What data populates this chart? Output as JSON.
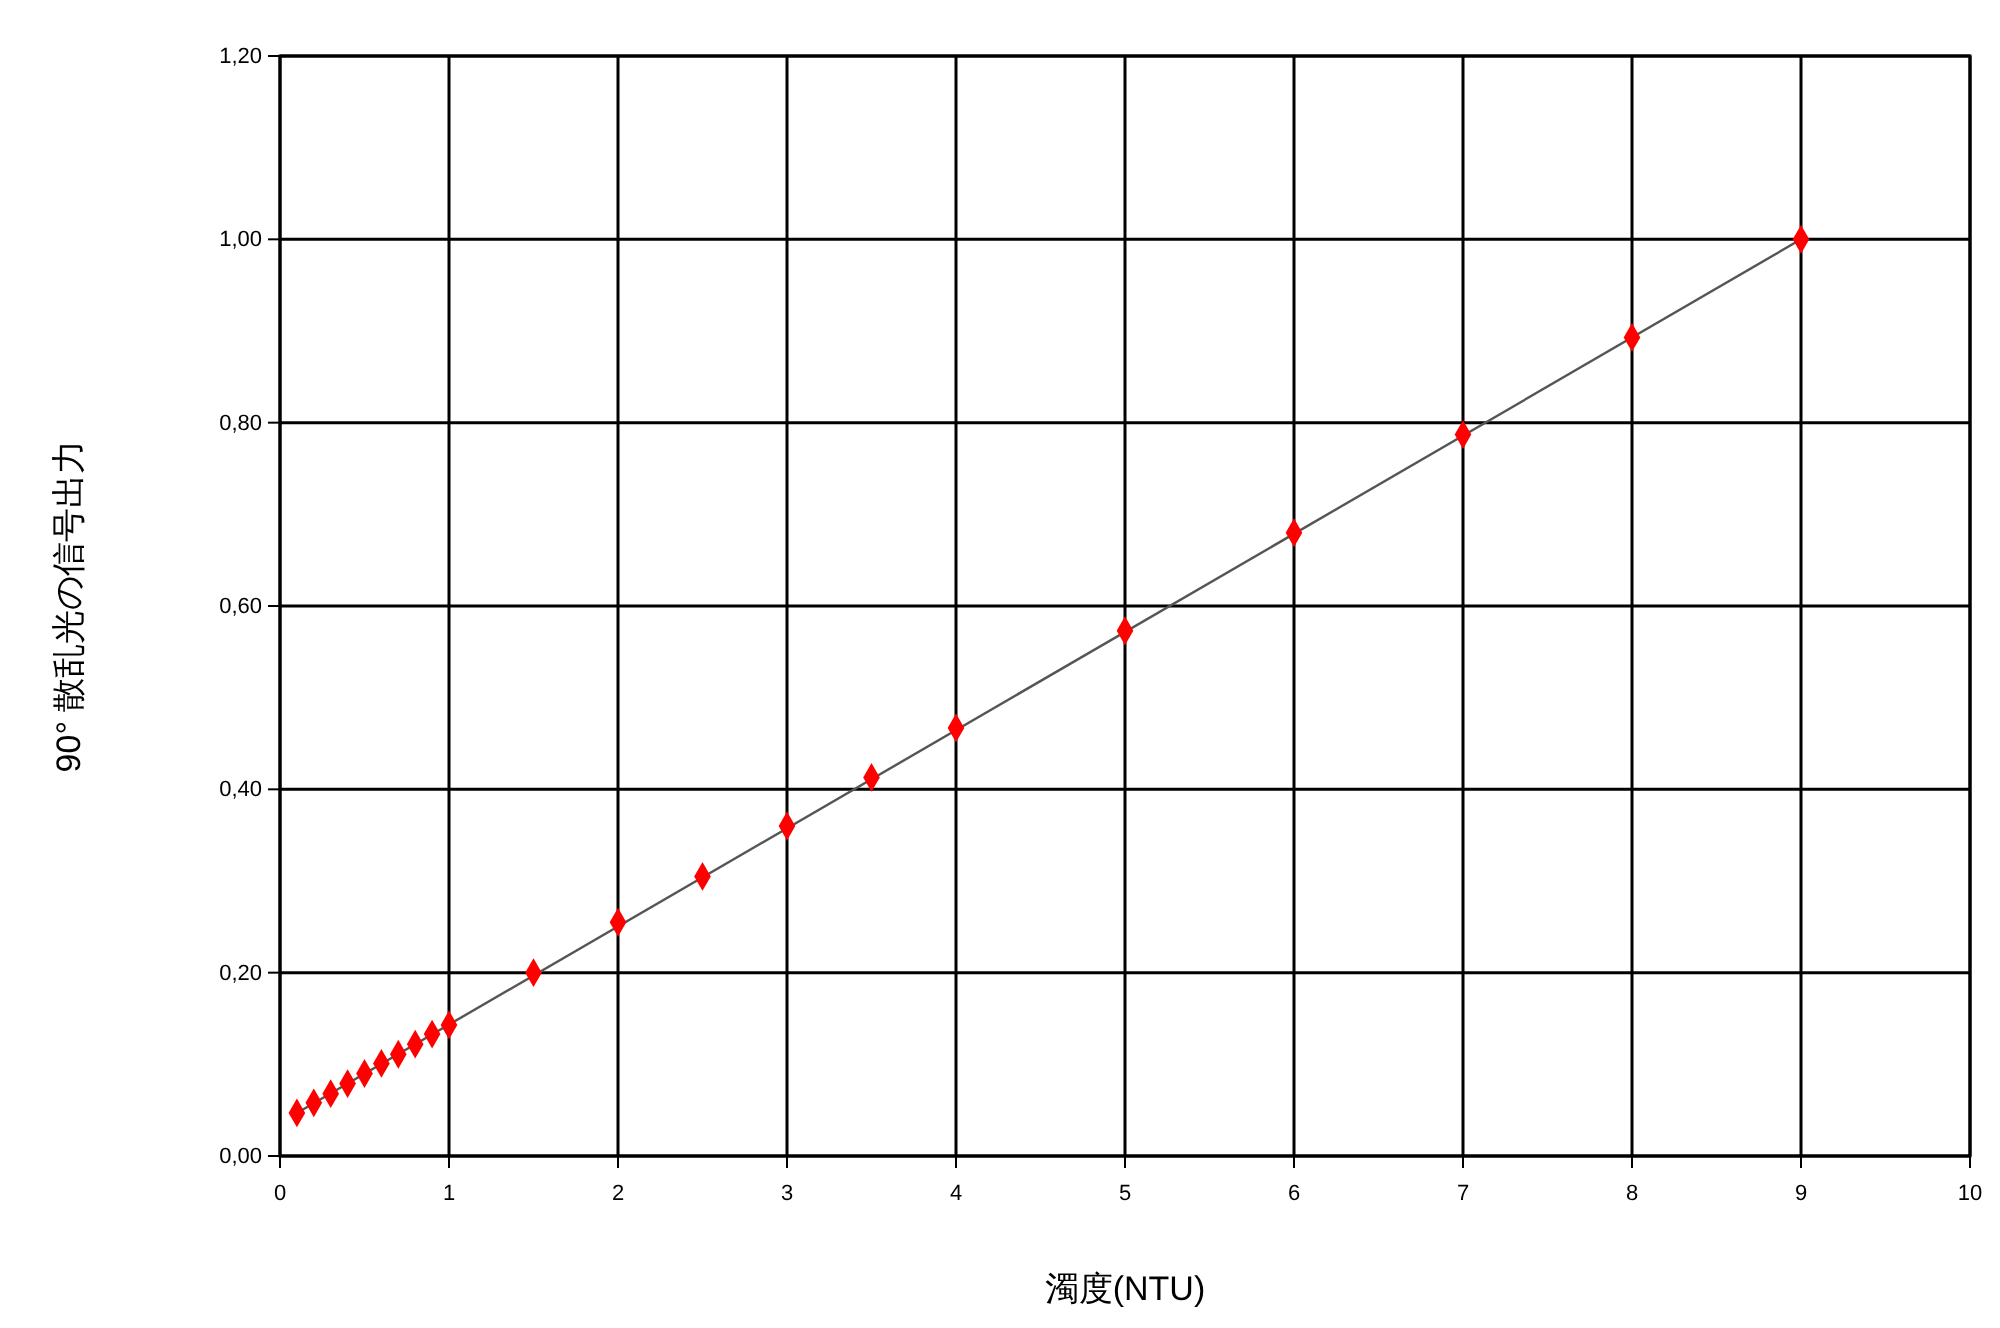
{
  "chart_data": {
    "type": "scatter",
    "xlabel": "濁度(NTU)",
    "ylabel": "90° 散乱光の信号出力",
    "xlim": [
      0,
      10
    ],
    "xticks": [
      0,
      1,
      2,
      3,
      4,
      5,
      6,
      7,
      8,
      9,
      10
    ],
    "ylim": [
      0,
      1.2
    ],
    "yticks": [
      {
        "value": 0,
        "label": "0,00"
      },
      {
        "value": 0.2,
        "label": "0,20"
      },
      {
        "value": 0.4,
        "label": "0,40"
      },
      {
        "value": 0.6,
        "label": "0,60"
      },
      {
        "value": 0.8,
        "label": "0,80"
      },
      {
        "value": 1.0,
        "label": "1,00"
      },
      {
        "value": 1.2,
        "label": "1,20"
      }
    ],
    "grid": true,
    "series": [
      {
        "type": "line",
        "marker": "none",
        "color": "#555555",
        "x": [
          0.1,
          9
        ],
        "values": [
          0.047,
          1.0
        ]
      },
      {
        "marker": "diamond",
        "color": "#ff0000",
        "x": [
          0.1,
          0.2,
          0.3,
          0.4,
          0.5,
          0.6,
          0.7,
          0.8,
          0.9,
          1.0,
          1.5,
          2,
          2.5,
          3,
          3.5,
          4,
          5,
          6,
          7,
          8,
          9
        ],
        "values": [
          0.047,
          0.058,
          0.068,
          0.079,
          0.09,
          0.101,
          0.111,
          0.122,
          0.133,
          0.143,
          0.2,
          0.255,
          0.305,
          0.36,
          0.413,
          0.467,
          0.573,
          0.68,
          0.787,
          0.893,
          1.0
        ]
      }
    ]
  }
}
